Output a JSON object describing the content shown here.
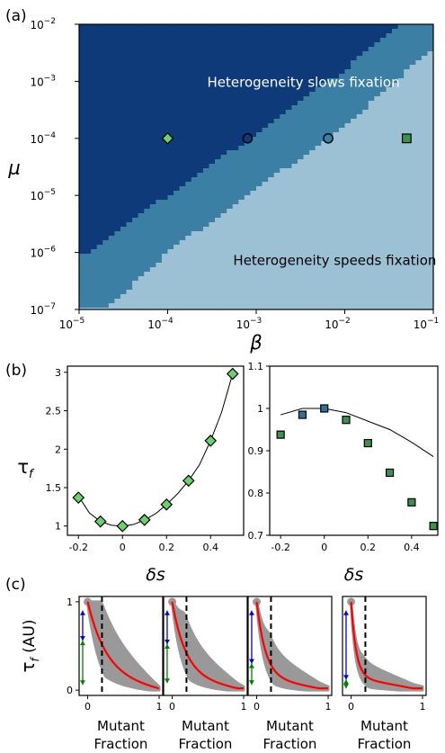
{
  "panel_labels": [
    "(a)",
    "(b)",
    "(c)"
  ],
  "chart_data": [
    {
      "id": "a",
      "type": "heatmap",
      "title": "",
      "xlabel": "β",
      "ylabel": "μ",
      "x_scale": "log",
      "y_scale": "log",
      "xlim": [
        1e-05,
        0.1
      ],
      "ylim": [
        1e-07,
        0.01
      ],
      "x_ticks": [
        {
          "v": 1e-05,
          "base": "10",
          "exp": "−5"
        },
        {
          "v": 0.0001,
          "base": "10",
          "exp": "−4"
        },
        {
          "v": 0.001,
          "base": "10",
          "exp": "−3"
        },
        {
          "v": 0.01,
          "base": "10",
          "exp": "−2"
        },
        {
          "v": 0.1,
          "base": "10",
          "exp": "−1"
        }
      ],
      "y_ticks": [
        {
          "v": 1e-07,
          "base": "10",
          "exp": "−7"
        },
        {
          "v": 1e-06,
          "base": "10",
          "exp": "−6"
        },
        {
          "v": 1e-05,
          "base": "10",
          "exp": "−5"
        },
        {
          "v": 0.0001,
          "base": "10",
          "exp": "−4"
        },
        {
          "v": 0.001,
          "base": "10",
          "exp": "−3"
        },
        {
          "v": 0.01,
          "base": "10",
          "exp": "−2"
        }
      ],
      "region_colors": {
        "slows": "#0e3a7a",
        "transition": "#3b7fa5",
        "speeds": "#9cc1d4"
      },
      "boundaries": {
        "upper": [
          [
            1e-05,
            8e-07
          ],
          [
            0.0001,
            1e-05
          ],
          [
            0.001,
            0.00012
          ],
          [
            0.01,
            0.0016
          ],
          [
            0.04,
            0.01
          ]
        ],
        "lower": [
          [
            2e-05,
            1e-07
          ],
          [
            0.0001,
            1e-06
          ],
          [
            0.001,
            1.3e-05
          ],
          [
            0.01,
            0.00016
          ],
          [
            0.1,
            0.004
          ]
        ]
      },
      "annotations": [
        {
          "text": "Heterogeneity slows fixation",
          "x": 0.00028,
          "y": 0.0008
        },
        {
          "text": "Heterogeneity speeds fixation",
          "x": 0.00055,
          "y": 6e-07
        }
      ],
      "markers": [
        {
          "shape": "diamond",
          "color": "#6fcf6f",
          "x": 0.0001,
          "y": 0.0001
        },
        {
          "shape": "circle",
          "color": "#0e3a7a",
          "x": 0.0008,
          "y": 0.0001
        },
        {
          "shape": "circle",
          "color": "#3b7fa5",
          "x": 0.0065,
          "y": 0.0001
        },
        {
          "shape": "square",
          "color": "#3f8f4f",
          "x": 0.05,
          "y": 0.0001
        }
      ]
    },
    {
      "id": "b-left",
      "type": "scatter",
      "xlabel": "δs",
      "ylabel": "τf",
      "xlim": [
        -0.25,
        0.55
      ],
      "ylim": [
        0.88,
        3.08
      ],
      "x_ticks": [
        -0.2,
        0,
        0.2,
        0.4
      ],
      "x_tick_labels": [
        "-0.2",
        "0",
        "0.2",
        "0.4"
      ],
      "y_ticks": [
        1,
        1.5,
        2,
        2.5,
        3
      ],
      "y_tick_labels": [
        "1",
        "1.5",
        "2",
        "2.5",
        "3"
      ],
      "marker": "diamond",
      "marker_color": "#6fcf6f",
      "x": [
        -0.2,
        -0.1,
        0,
        0.1,
        0.2,
        0.3,
        0.4,
        0.5
      ],
      "y": [
        1.37,
        1.06,
        1.0,
        1.08,
        1.28,
        1.59,
        2.11,
        2.98
      ],
      "fit_curve": {
        "x": [
          -0.2,
          -0.15,
          -0.1,
          -0.05,
          0,
          0.05,
          0.1,
          0.15,
          0.2,
          0.25,
          0.3,
          0.35,
          0.4,
          0.45,
          0.5
        ],
        "y": [
          1.39,
          1.17,
          1.06,
          1.01,
          1.0,
          1.02,
          1.08,
          1.16,
          1.28,
          1.42,
          1.59,
          1.8,
          2.11,
          2.48,
          2.98
        ]
      }
    },
    {
      "id": "b-right",
      "type": "scatter",
      "xlabel": "δs",
      "ylabel": "",
      "xlim": [
        -0.25,
        0.52
      ],
      "ylim": [
        0.7,
        1.1
      ],
      "x_ticks": [
        -0.2,
        0,
        0.2,
        0.4
      ],
      "x_tick_labels": [
        "-0.2",
        "0",
        "0.2",
        "0.4"
      ],
      "y_ticks": [
        0.7,
        0.8,
        0.9,
        1.0,
        1.1
      ],
      "y_tick_labels": [
        "0.7",
        "0.8",
        "0.9",
        "1",
        "1.1"
      ],
      "points": [
        {
          "x": -0.2,
          "y": 0.938,
          "color": "#3f8f4f"
        },
        {
          "x": -0.1,
          "y": 0.985,
          "color": "#2f6f9a"
        },
        {
          "x": 0,
          "y": 1.0,
          "color": "#2f6f9a"
        },
        {
          "x": 0.1,
          "y": 0.973,
          "color": "#3f8f4f"
        },
        {
          "x": 0.2,
          "y": 0.918,
          "color": "#3f8f4f"
        },
        {
          "x": 0.3,
          "y": 0.848,
          "color": "#3f8f4f"
        },
        {
          "x": 0.4,
          "y": 0.778,
          "color": "#3f8f4f"
        },
        {
          "x": 0.5,
          "y": 0.722,
          "color": "#3f8f4f"
        }
      ],
      "fit_curve": {
        "x": [
          -0.2,
          -0.1,
          0,
          0.1,
          0.2,
          0.3,
          0.4,
          0.5
        ],
        "y": [
          0.985,
          1.0,
          1.0,
          0.99,
          0.97,
          0.95,
          0.92,
          0.886
        ]
      }
    },
    {
      "id": "c",
      "type": "area",
      "ylabel": "τf (AU)",
      "xlabel_lines": [
        "Mutant",
        "Fraction"
      ],
      "xlim": [
        -0.12,
        1.05
      ],
      "ylim": [
        -0.06,
        1.06
      ],
      "x_ticks": [
        0,
        1
      ],
      "x_tick_labels": [
        "0",
        "1"
      ],
      "y_ticks": [
        0,
        1
      ],
      "y_tick_labels": [
        "0",
        "1"
      ],
      "threshold": 0.2,
      "band_color": "#999999",
      "mean_color": "#ff0000",
      "arrow_colors": {
        "upper": "#0000cc",
        "lower": "#008000"
      },
      "panels": [
        {
          "upper": [
            0.9,
            0.56
          ],
          "lower": [
            0.56,
            0.06
          ],
          "mean_k": 0.75,
          "band_spread": 0.55
        },
        {
          "upper": [
            0.9,
            0.52
          ],
          "lower": [
            0.52,
            0.08
          ],
          "mean_k": 0.55,
          "band_spread": 0.45
        },
        {
          "upper": [
            0.9,
            0.3
          ],
          "lower": [
            0.3,
            0.06
          ],
          "mean_k": 0.35,
          "band_spread": 0.35
        },
        {
          "upper": [
            0.9,
            0.12
          ],
          "lower": [
            0.12,
            0.02
          ],
          "mean_k": 0.2,
          "band_spread": 0.2
        }
      ]
    }
  ]
}
